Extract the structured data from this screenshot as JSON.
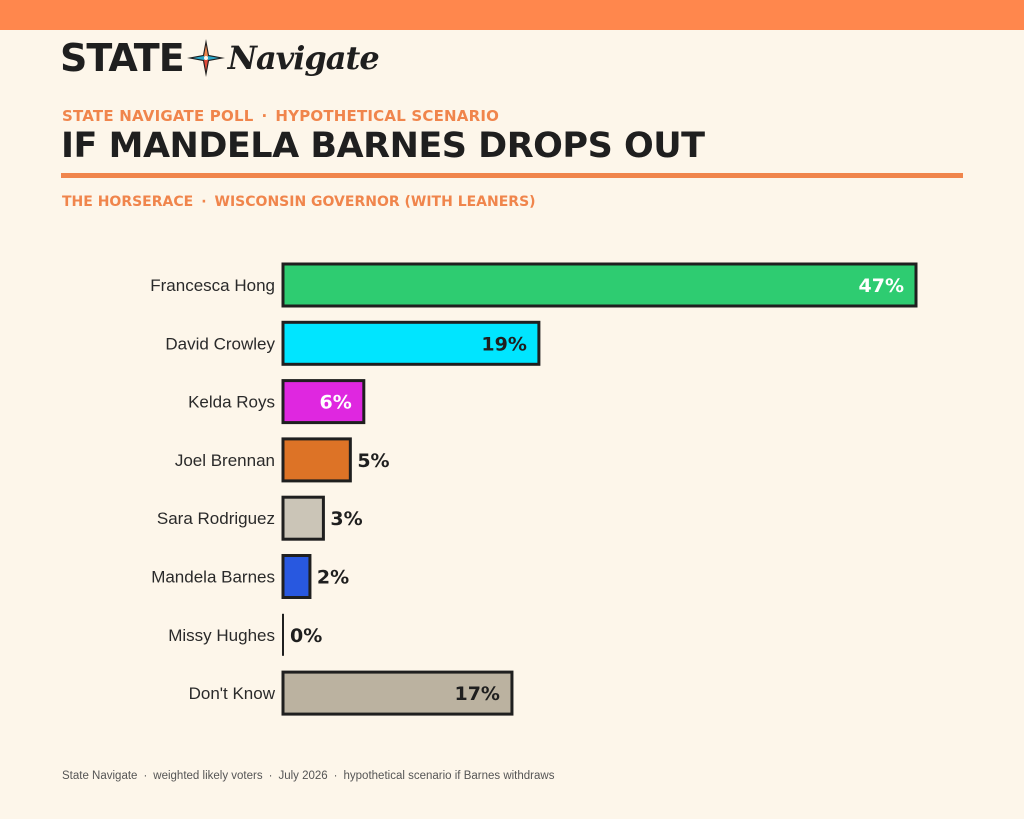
{
  "header": {
    "logo_left": "STATE",
    "logo_right": "Navigate",
    "kicker_left": "STATE NAVIGATE POLL",
    "kicker_right": "HYPOTHETICAL SCENARIO",
    "kicker_sep": "·",
    "headline": "IF MANDELA BARNES DROPS OUT",
    "subhead_left": "THE HORSERACE",
    "subhead_right": "WISCONSIN GOVERNOR (WITH LEANERS)"
  },
  "footer": {
    "source": "State Navigate",
    "sample": "weighted likely voters",
    "date": "July 2026",
    "note": "hypothetical scenario if Barnes withdraws",
    "sep": "·"
  },
  "colors": {
    "accent": "#f0854c",
    "band": "#ff874d",
    "background": "#fdf6ea",
    "bar_outline": "#1f1f1f"
  },
  "chart_data": {
    "type": "bar",
    "orientation": "horizontal",
    "title": "",
    "xlabel": "",
    "ylabel": "",
    "xlim": [
      0,
      50
    ],
    "grid": false,
    "categories": [
      "Francesca Hong",
      "David Crowley",
      "Kelda Roys",
      "Joel Brennan",
      "Sara Rodriguez",
      "Mandela Barnes",
      "Missy Hughes",
      "Don't Know"
    ],
    "values": [
      47,
      19,
      6,
      5,
      3,
      2,
      0,
      17
    ],
    "value_labels": [
      "47%",
      "19%",
      "6%",
      "5%",
      "3%",
      "2%",
      "0%",
      "17%"
    ],
    "bar_colors": [
      "#2ecc71",
      "#00e5ff",
      "#df27e0",
      "#dd7326",
      "#cbc5b7",
      "#2858e0",
      "#c8c3b6",
      "#bbb2a0"
    ],
    "label_colors": [
      "#ffffff",
      "#1f1f1f",
      "#ffffff",
      "#1f1f1f",
      "#1f1f1f",
      "#1f1f1f",
      "#1f1f1f",
      "#1f1f1f"
    ]
  }
}
